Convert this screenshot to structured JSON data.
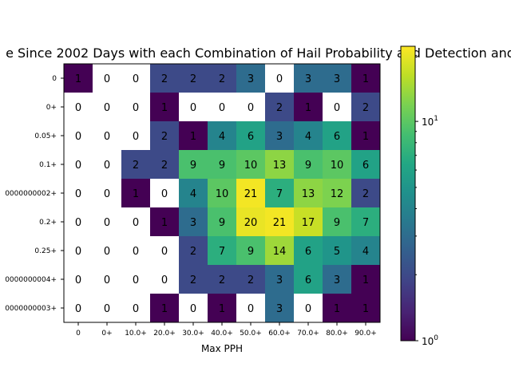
{
  "chart_data": {
    "type": "heatmap",
    "title": "e Since 2002 Days with each Combination of Hail Probability and Detection and",
    "xlabel": "Max PPH",
    "ylabel": "",
    "x_categories": [
      "0",
      "0+",
      "10.0+",
      "20.0+",
      "30.0+",
      "40.0+",
      "50.0+",
      "60.0+",
      "70.0+",
      "80.0+",
      "90.0+"
    ],
    "y_categories": [
      "0",
      "0+",
      "0.05+",
      "0.1+",
      "0000000002+",
      "0.2+",
      "0.25+",
      "0000000004+",
      "0000000003+"
    ],
    "values": [
      [
        1,
        0,
        0,
        2,
        2,
        2,
        3,
        0,
        3,
        3,
        1
      ],
      [
        0,
        0,
        0,
        1,
        0,
        0,
        0,
        2,
        1,
        0,
        2
      ],
      [
        0,
        0,
        0,
        2,
        1,
        4,
        6,
        3,
        4,
        6,
        1
      ],
      [
        0,
        0,
        2,
        2,
        9,
        9,
        10,
        13,
        9,
        10,
        6
      ],
      [
        0,
        0,
        1,
        0,
        4,
        10,
        21,
        7,
        13,
        12,
        2
      ],
      [
        0,
        0,
        0,
        1,
        3,
        9,
        20,
        21,
        17,
        9,
        7
      ],
      [
        0,
        0,
        0,
        0,
        2,
        7,
        9,
        14,
        6,
        5,
        4
      ],
      [
        0,
        0,
        0,
        0,
        2,
        2,
        2,
        3,
        6,
        3,
        1
      ],
      [
        0,
        0,
        0,
        1,
        0,
        1,
        0,
        3,
        0,
        1,
        1
      ]
    ],
    "colormap": "viridis",
    "color_scale": "log",
    "zero_cells": "white",
    "colorbar": {
      "range": [
        1,
        22
      ],
      "ticks": [
        {
          "value": 1,
          "base": "10",
          "exp": "0"
        },
        {
          "value": 10,
          "base": "10",
          "exp": "1"
        }
      ],
      "minor_ticks": [
        2,
        3,
        4,
        5,
        6,
        7,
        8,
        9,
        20
      ],
      "placement": "right"
    }
  }
}
